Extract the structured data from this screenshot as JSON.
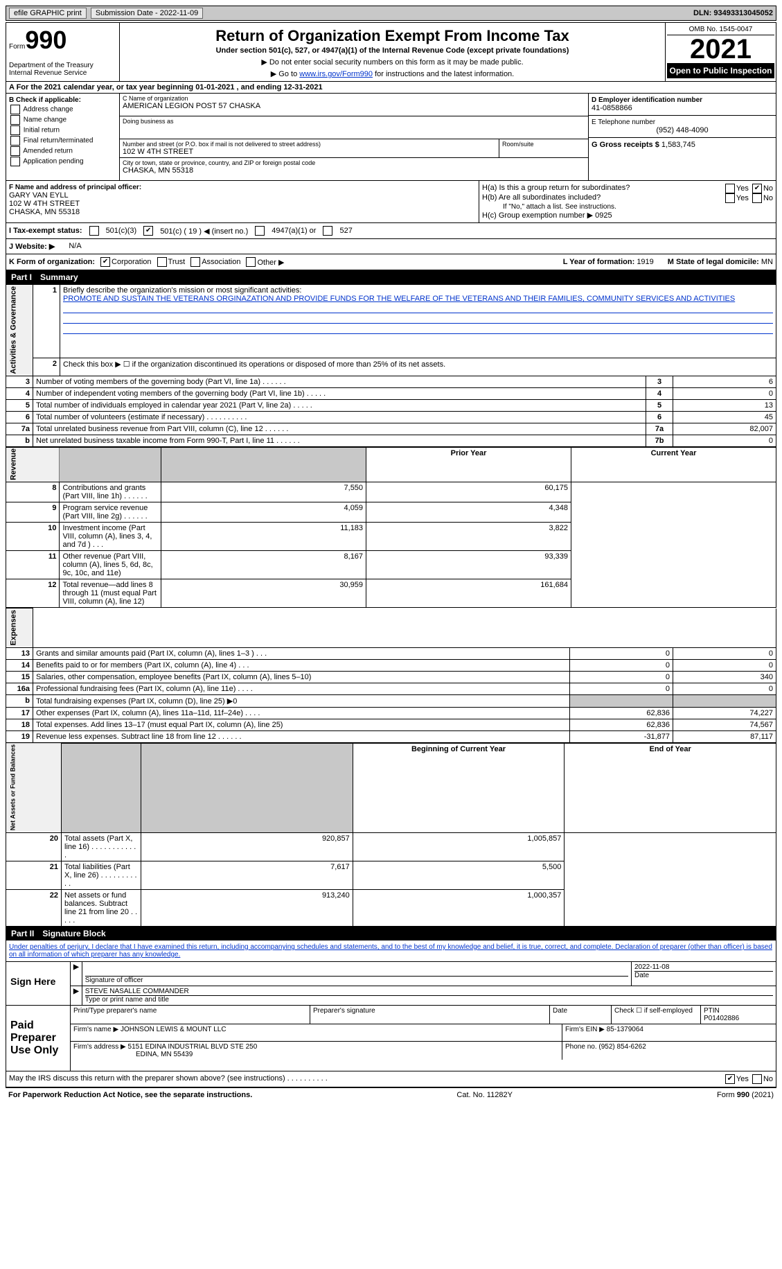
{
  "topbar": {
    "efile": "efile GRAPHIC print",
    "submission_label": "Submission Date - 2022-11-09",
    "dln_label": "DLN: 93493313045052"
  },
  "header": {
    "form_word": "Form",
    "form_num": "990",
    "dept": "Department of the Treasury\nInternal Revenue Service",
    "title": "Return of Organization Exempt From Income Tax",
    "subtitle": "Under section 501(c), 527, or 4947(a)(1) of the Internal Revenue Code (except private foundations)",
    "note1": "▶ Do not enter social security numbers on this form as it may be made public.",
    "note2_pre": "▶ Go to ",
    "note2_link": "www.irs.gov/Form990",
    "note2_post": " for instructions and the latest information.",
    "omb": "OMB No. 1545-0047",
    "year": "2021",
    "open": "Open to Public Inspection"
  },
  "row_a": "A  For the 2021 calendar year, or tax year beginning 01-01-2021    , and ending 12-31-2021",
  "section_b": {
    "b_label": "B Check if applicable:",
    "checks": [
      "Address change",
      "Name change",
      "Initial return",
      "Final return/terminated",
      "Amended return",
      "Application pending"
    ],
    "c_label": "C Name of organization",
    "org_name": "AMERICAN LEGION POST 57 CHASKA",
    "dba_label": "Doing business as",
    "dba": "",
    "street_label": "Number and street (or P.O. box if mail is not delivered to street address)",
    "street": "102 W 4TH STREET",
    "room_label": "Room/suite",
    "city_label": "City or town, state or province, country, and ZIP or foreign postal code",
    "city": "CHASKA, MN  55318",
    "d_label": "D Employer identification number",
    "ein": "41-0858866",
    "e_label": "E Telephone number",
    "phone": "(952) 448-4090",
    "g_label": "G Gross receipts $",
    "gross": "1,583,745"
  },
  "section_f": {
    "f_label": "F Name and address of principal officer:",
    "name": "GARY VAN EYLL",
    "addr1": "102 W 4TH STREET",
    "addr2": "CHASKA, MN  55318",
    "ha": "H(a)  Is this a group return for subordinates?",
    "hb": "H(b)  Are all subordinates included?",
    "hb_note": "If \"No,\" attach a list. See instructions.",
    "hc": "H(c)  Group exemption number ▶",
    "hc_val": "0925",
    "yes": "Yes",
    "no": "No"
  },
  "row_i": {
    "label": "I   Tax-exempt status:",
    "opt1": "501(c)(3)",
    "opt2": "501(c) ( 19 ) ◀ (insert no.)",
    "opt3": "4947(a)(1) or",
    "opt4": "527"
  },
  "row_j": {
    "label": "J   Website: ▶",
    "val": "N/A"
  },
  "row_k": {
    "label": "K Form of organization:",
    "opts": [
      "Corporation",
      "Trust",
      "Association",
      "Other ▶"
    ],
    "l_label": "L Year of formation:",
    "l_val": "1919",
    "m_label": "M State of legal domicile:",
    "m_val": "MN"
  },
  "part1": {
    "label": "Part I",
    "title": "Summary"
  },
  "summary": {
    "line1_label": "Briefly describe the organization's mission or most significant activities:",
    "mission": "PROMOTE AND SUSTAIN THE VETERANS ORGINAZATION AND PROVIDE FUNDS FOR THE WELFARE OF THE VETERANS AND THEIR FAMILIES, COMMUNITY SERVICES AND ACTIVITIES",
    "line2": "Check this box ▶ ☐ if the organization discontinued its operations or disposed of more than 25% of its net assets.",
    "governance_label": "Activities & Governance",
    "revenue_label": "Revenue",
    "expenses_label": "Expenses",
    "netassets_label": "Net Assets or Fund Balances",
    "prior_year": "Prior Year",
    "current_year": "Current Year",
    "begin_year": "Beginning of Current Year",
    "end_year": "End of Year",
    "lines_gov": [
      {
        "n": "3",
        "text": "Number of voting members of the governing body (Part VI, line 1a)   .    .    .    .    .    .",
        "box": "3",
        "val": "6"
      },
      {
        "n": "4",
        "text": "Number of independent voting members of the governing body (Part VI, line 1b)   .    .    .    .    .",
        "box": "4",
        "val": "0"
      },
      {
        "n": "5",
        "text": "Total number of individuals employed in calendar year 2021 (Part V, line 2a)   .    .    .    .    .",
        "box": "5",
        "val": "13"
      },
      {
        "n": "6",
        "text": "Total number of volunteers (estimate if necessary)    .    .    .    .    .    .    .    .    .    .",
        "box": "6",
        "val": "45"
      },
      {
        "n": "7a",
        "text": "Total unrelated business revenue from Part VIII, column (C), line 12   .    .    .    .    .    .",
        "box": "7a",
        "val": "82,007"
      },
      {
        "n": "b",
        "text": "Net unrelated business taxable income from Form 990-T, Part I, line 11   .    .    .    .    .    .",
        "box": "7b",
        "val": "0"
      }
    ],
    "lines_rev": [
      {
        "n": "8",
        "text": "Contributions and grants (Part VIII, line 1h)   .    .    .    .    .    .",
        "prior": "7,550",
        "curr": "60,175"
      },
      {
        "n": "9",
        "text": "Program service revenue (Part VIII, line 2g)    .    .    .    .    .    .",
        "prior": "4,059",
        "curr": "4,348"
      },
      {
        "n": "10",
        "text": "Investment income (Part VIII, column (A), lines 3, 4, and 7d )    .    .    .",
        "prior": "11,183",
        "curr": "3,822"
      },
      {
        "n": "11",
        "text": "Other revenue (Part VIII, column (A), lines 5, 6d, 8c, 9c, 10c, and 11e)",
        "prior": "8,167",
        "curr": "93,339"
      },
      {
        "n": "12",
        "text": "Total revenue—add lines 8 through 11 (must equal Part VIII, column (A), line 12)",
        "prior": "30,959",
        "curr": "161,684"
      }
    ],
    "lines_exp": [
      {
        "n": "13",
        "text": "Grants and similar amounts paid (Part IX, column (A), lines 1–3 )   .    .    .",
        "prior": "0",
        "curr": "0"
      },
      {
        "n": "14",
        "text": "Benefits paid to or for members (Part IX, column (A), line 4)   .    .    .",
        "prior": "0",
        "curr": "0"
      },
      {
        "n": "15",
        "text": "Salaries, other compensation, employee benefits (Part IX, column (A), lines 5–10)",
        "prior": "0",
        "curr": "340"
      },
      {
        "n": "16a",
        "text": "Professional fundraising fees (Part IX, column (A), line 11e)   .    .    .    .",
        "prior": "0",
        "curr": "0"
      },
      {
        "n": "b",
        "text": "Total fundraising expenses (Part IX, column (D), line 25) ▶0",
        "prior": "",
        "curr": "",
        "shaded": true
      },
      {
        "n": "17",
        "text": "Other expenses (Part IX, column (A), lines 11a–11d, 11f–24e)   .    .    .    .",
        "prior": "62,836",
        "curr": "74,227"
      },
      {
        "n": "18",
        "text": "Total expenses. Add lines 13–17 (must equal Part IX, column (A), line 25)",
        "prior": "62,836",
        "curr": "74,567"
      },
      {
        "n": "19",
        "text": "Revenue less expenses. Subtract line 18 from line 12   .    .    .    .    .    .",
        "prior": "-31,877",
        "curr": "87,117"
      }
    ],
    "lines_net": [
      {
        "n": "20",
        "text": "Total assets (Part X, line 16)   .    .    .    .    .    .    .    .    .    .    .    .",
        "prior": "920,857",
        "curr": "1,005,857"
      },
      {
        "n": "21",
        "text": "Total liabilities (Part X, line 26)   .    .    .    .    .    .    .    .    .    .    .",
        "prior": "7,617",
        "curr": "5,500"
      },
      {
        "n": "22",
        "text": "Net assets or fund balances. Subtract line 21 from line 20   .    .    .    .    .",
        "prior": "913,240",
        "curr": "1,000,357"
      }
    ]
  },
  "part2": {
    "label": "Part II",
    "title": "Signature Block"
  },
  "penalties": "Under penalties of perjury, I declare that I have examined this return, including accompanying schedules and statements, and to the best of my knowledge and belief, it is true, correct, and complete. Declaration of preparer (other than officer) is based on all information of which preparer has any knowledge.",
  "sign": {
    "here": "Sign Here",
    "sig_officer": "Signature of officer",
    "date": "Date",
    "date_val": "2022-11-08",
    "name_title": "Type or print name and title",
    "name_val": "STEVE NASALLE COMMANDER"
  },
  "preparer": {
    "label": "Paid Preparer Use Only",
    "print_name": "Print/Type preparer's name",
    "sig": "Preparer's signature",
    "date": "Date",
    "check_self": "Check ☐ if self-employed",
    "ptin_label": "PTIN",
    "ptin": "P01402886",
    "firm_name_label": "Firm's name    ▶",
    "firm_name": "JOHNSON LEWIS & MOUNT LLC",
    "firm_ein_label": "Firm's EIN ▶",
    "firm_ein": "85-1379064",
    "firm_addr_label": "Firm's address ▶",
    "firm_addr1": "5151 EDINA INDUSTRIAL BLVD STE 250",
    "firm_addr2": "EDINA, MN  55439",
    "phone_label": "Phone no.",
    "phone": "(952) 854-6262"
  },
  "discuss": {
    "text": "May the IRS discuss this return with the preparer shown above? (see instructions)   .    .    .    .    .    .    .    .    .    .",
    "yes": "Yes",
    "no": "No"
  },
  "footer": {
    "left": "For Paperwork Reduction Act Notice, see the separate instructions.",
    "mid": "Cat. No. 11282Y",
    "right": "Form 990 (2021)"
  }
}
